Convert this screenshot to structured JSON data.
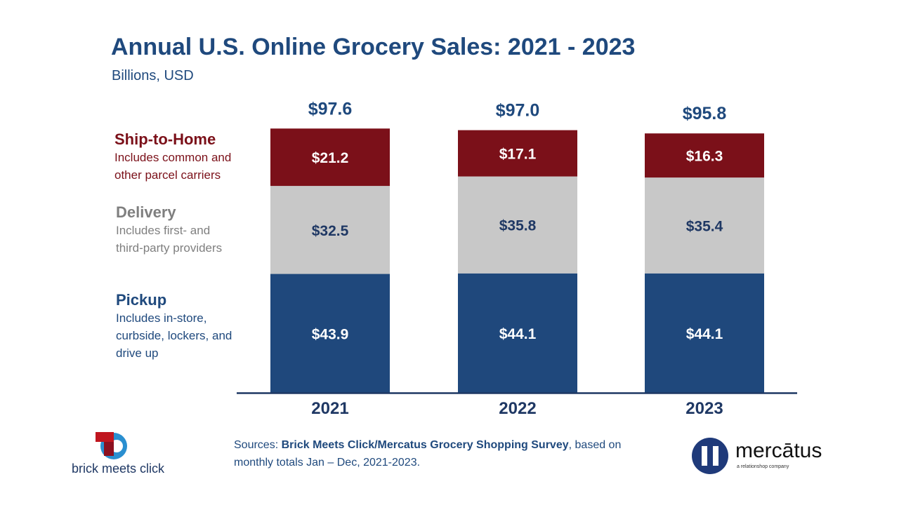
{
  "chart_data": {
    "type": "bar",
    "stacked": true,
    "title": "Annual U.S. Online Grocery Sales: 2021 - 2023",
    "subtitle": "Billions, USD",
    "categories": [
      "2021",
      "2022",
      "2023"
    ],
    "series": [
      {
        "name": "Pickup",
        "description": "Includes in-store, curbside, lockers, and drive up",
        "color": "#1f487c",
        "label_color": "#ffffff",
        "values": [
          43.9,
          44.1,
          44.1
        ],
        "labels": [
          "$43.9",
          "$44.1",
          "$44.1"
        ]
      },
      {
        "name": "Delivery",
        "description": "Includes first- and third-party providers",
        "color": "#c8c8c8",
        "label_color": "#1f3864",
        "values": [
          32.5,
          35.8,
          35.4
        ],
        "labels": [
          "$32.5",
          "$35.8",
          "$35.4"
        ]
      },
      {
        "name": "Ship-to-Home",
        "description": "Includes common and other parcel carriers",
        "color": "#7b1019",
        "label_color": "#ffffff",
        "values": [
          21.2,
          17.1,
          16.3
        ],
        "labels": [
          "$21.2",
          "$17.1",
          "$16.3"
        ]
      }
    ],
    "totals": [
      97.6,
      97.0,
      95.8
    ],
    "total_labels": [
      "$97.6",
      "$97.0",
      "$95.8"
    ],
    "legend_placement": "left",
    "legend_colors": {
      "Ship-to-Home": "#7b1019",
      "Delivery": "#7f7f7f",
      "Pickup": "#1f497d"
    },
    "grid": false
  },
  "source": {
    "prefix": "Sources: ",
    "bold": "Brick Meets Click/Mercatus Grocery Shopping Survey",
    "suffix": ", based on",
    "line2": "monthly totals Jan – Dec, 2021-2023."
  },
  "logos": {
    "left": "brick meets click",
    "right": "mercātus",
    "right_tagline": "a relationshop company"
  }
}
